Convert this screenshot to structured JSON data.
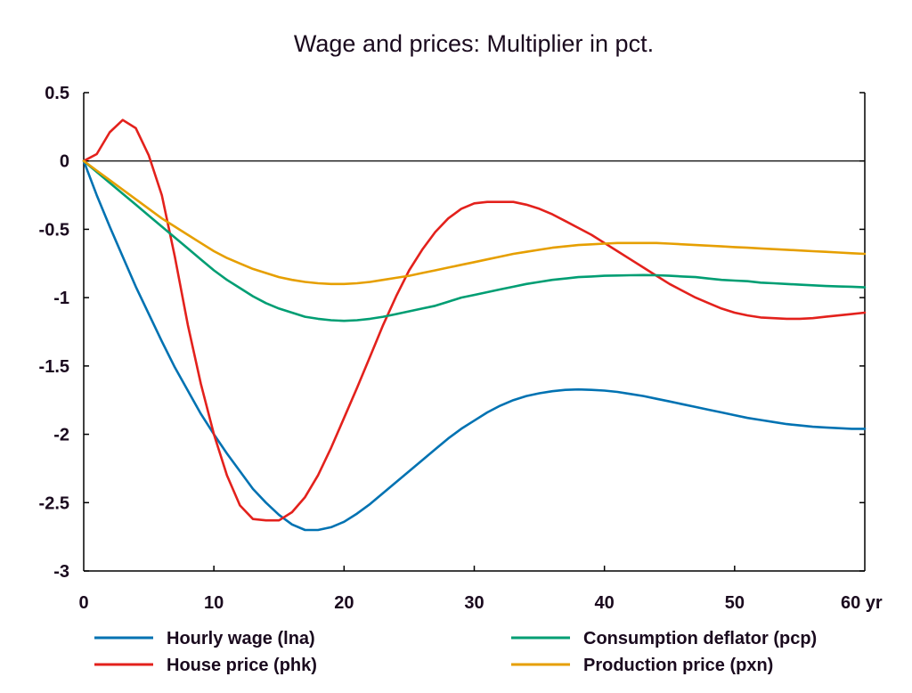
{
  "chart_data": {
    "type": "line",
    "title": "Wage and prices: Multiplier in pct.",
    "xlabel": "",
    "ylabel": "",
    "x_unit_suffix": "yr",
    "xlim": [
      0,
      60
    ],
    "ylim": [
      -3,
      0.5
    ],
    "x_ticks": [
      0,
      10,
      20,
      30,
      40,
      50,
      60
    ],
    "x_tick_labels": [
      "0",
      "10",
      "20",
      "30",
      "40",
      "50",
      "60 yr"
    ],
    "y_ticks": [
      0.5,
      0,
      -0.5,
      -1,
      -1.5,
      -2,
      -2.5,
      -3
    ],
    "y_tick_labels": [
      "0.5",
      "0",
      "-0.5",
      "-1",
      "-1.5",
      "-2",
      "-2.5",
      "-3"
    ],
    "grid": false,
    "zero_line": true,
    "legend_position": "bottom",
    "x": [
      0,
      1,
      2,
      3,
      4,
      5,
      6,
      7,
      8,
      9,
      10,
      11,
      12,
      13,
      14,
      15,
      16,
      17,
      18,
      19,
      20,
      21,
      22,
      23,
      24,
      25,
      26,
      27,
      28,
      29,
      30,
      31,
      32,
      33,
      34,
      35,
      36,
      37,
      38,
      39,
      40,
      41,
      42,
      43,
      44,
      45,
      46,
      47,
      48,
      49,
      50,
      51,
      52,
      53,
      54,
      55,
      56,
      57,
      58,
      59,
      60
    ],
    "series": [
      {
        "name": "Hourly wage (lna)",
        "color": "#0072b2",
        "values": [
          0,
          -0.25,
          -0.48,
          -0.7,
          -0.92,
          -1.12,
          -1.32,
          -1.51,
          -1.68,
          -1.85,
          -2.0,
          -2.14,
          -2.27,
          -2.4,
          -2.5,
          -2.59,
          -2.66,
          -2.7,
          -2.7,
          -2.68,
          -2.64,
          -2.58,
          -2.51,
          -2.43,
          -2.35,
          -2.27,
          -2.19,
          -2.11,
          -2.03,
          -1.96,
          -1.9,
          -1.84,
          -1.79,
          -1.75,
          -1.72,
          -1.7,
          -1.685,
          -1.675,
          -1.672,
          -1.675,
          -1.68,
          -1.69,
          -1.705,
          -1.72,
          -1.74,
          -1.76,
          -1.78,
          -1.8,
          -1.82,
          -1.84,
          -1.86,
          -1.88,
          -1.895,
          -1.91,
          -1.925,
          -1.935,
          -1.945,
          -1.95,
          -1.955,
          -1.96,
          -1.96
        ]
      },
      {
        "name": "House price (phk)",
        "color": "#e3211c",
        "values": [
          0,
          0.05,
          0.21,
          0.3,
          0.24,
          0.04,
          -0.25,
          -0.7,
          -1.2,
          -1.63,
          -2.0,
          -2.3,
          -2.52,
          -2.62,
          -2.63,
          -2.63,
          -2.57,
          -2.46,
          -2.3,
          -2.1,
          -1.88,
          -1.66,
          -1.43,
          -1.2,
          -0.99,
          -0.8,
          -0.65,
          -0.52,
          -0.42,
          -0.35,
          -0.31,
          -0.3,
          -0.3,
          -0.3,
          -0.32,
          -0.35,
          -0.39,
          -0.44,
          -0.49,
          -0.54,
          -0.6,
          -0.66,
          -0.72,
          -0.78,
          -0.84,
          -0.9,
          -0.95,
          -1.0,
          -1.04,
          -1.08,
          -1.11,
          -1.13,
          -1.145,
          -1.15,
          -1.155,
          -1.155,
          -1.15,
          -1.14,
          -1.13,
          -1.12,
          -1.11
        ]
      },
      {
        "name": "Consumption deflator (pcp)",
        "color": "#009e73",
        "values": [
          0,
          -0.08,
          -0.16,
          -0.24,
          -0.32,
          -0.4,
          -0.48,
          -0.56,
          -0.64,
          -0.72,
          -0.8,
          -0.87,
          -0.93,
          -0.99,
          -1.04,
          -1.08,
          -1.11,
          -1.14,
          -1.155,
          -1.165,
          -1.17,
          -1.165,
          -1.155,
          -1.14,
          -1.12,
          -1.1,
          -1.08,
          -1.06,
          -1.03,
          -1.0,
          -0.98,
          -0.96,
          -0.94,
          -0.92,
          -0.9,
          -0.885,
          -0.87,
          -0.86,
          -0.85,
          -0.845,
          -0.84,
          -0.838,
          -0.836,
          -0.835,
          -0.836,
          -0.84,
          -0.845,
          -0.85,
          -0.86,
          -0.87,
          -0.875,
          -0.88,
          -0.89,
          -0.895,
          -0.9,
          -0.905,
          -0.91,
          -0.915,
          -0.918,
          -0.92,
          -0.925
        ]
      },
      {
        "name": "Production price (pxn)",
        "color": "#e69f00",
        "values": [
          0,
          -0.07,
          -0.14,
          -0.21,
          -0.28,
          -0.35,
          -0.42,
          -0.48,
          -0.54,
          -0.6,
          -0.66,
          -0.71,
          -0.75,
          -0.79,
          -0.82,
          -0.85,
          -0.87,
          -0.885,
          -0.895,
          -0.9,
          -0.9,
          -0.895,
          -0.885,
          -0.87,
          -0.855,
          -0.84,
          -0.82,
          -0.8,
          -0.78,
          -0.76,
          -0.74,
          -0.72,
          -0.7,
          -0.68,
          -0.665,
          -0.65,
          -0.635,
          -0.625,
          -0.615,
          -0.61,
          -0.605,
          -0.6,
          -0.6,
          -0.6,
          -0.6,
          -0.605,
          -0.61,
          -0.615,
          -0.62,
          -0.625,
          -0.63,
          -0.635,
          -0.64,
          -0.645,
          -0.65,
          -0.655,
          -0.66,
          -0.665,
          -0.67,
          -0.675,
          -0.68
        ]
      }
    ]
  }
}
